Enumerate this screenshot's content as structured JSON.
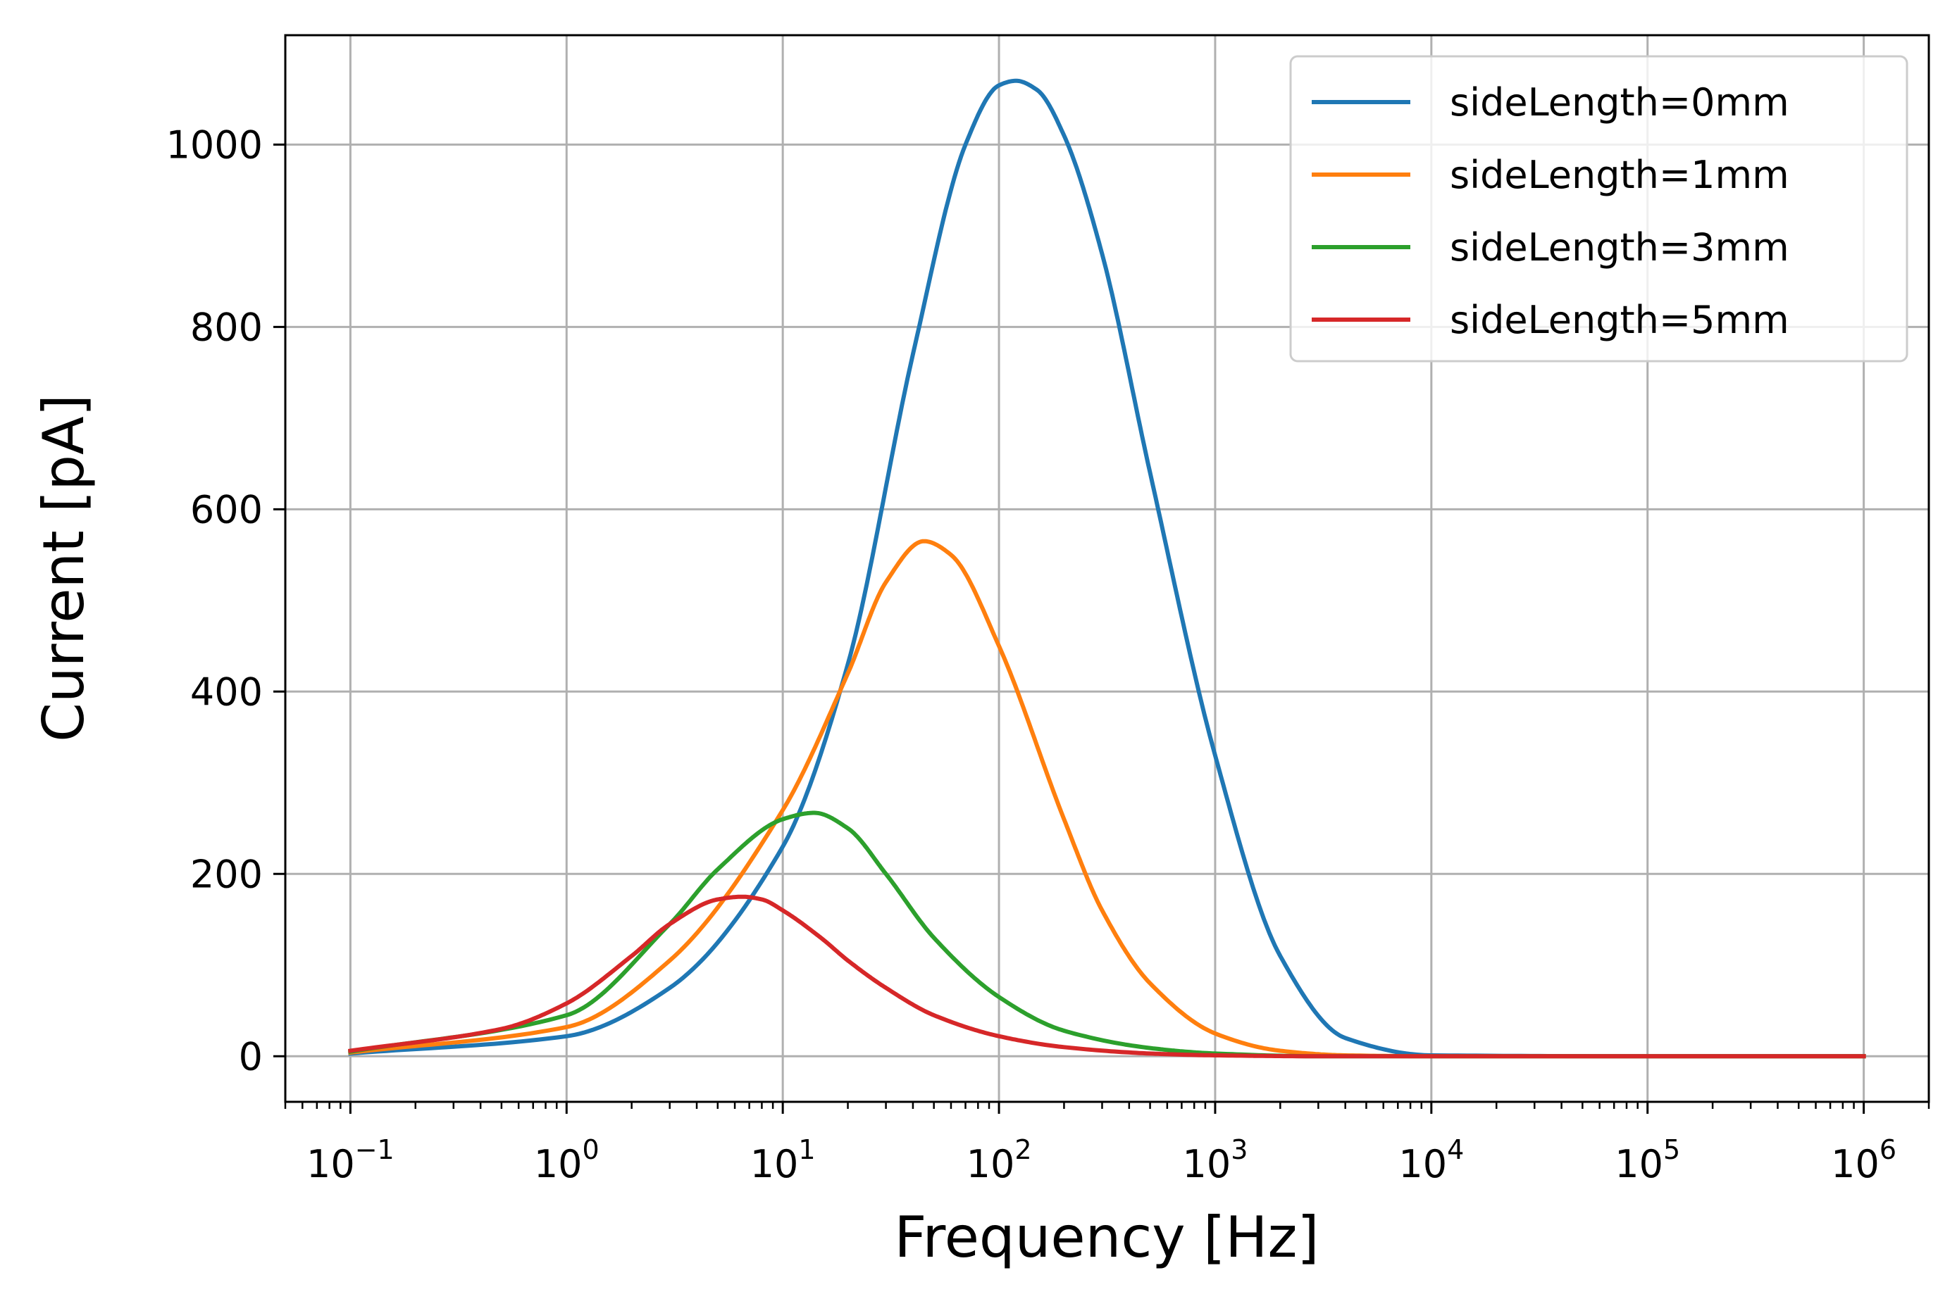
{
  "chart_data": {
    "type": "line",
    "xlabel": "Frequency [Hz]",
    "ylabel": "Current [pA]",
    "xscale": "log",
    "xlim": [
      0.05,
      2000000
    ],
    "ylim": [
      -50,
      1120
    ],
    "grid": true,
    "legend_position": "top-right",
    "x_ticks": [
      {
        "value": 0.1,
        "base": "10",
        "exp": "−1"
      },
      {
        "value": 1,
        "base": "10",
        "exp": "0"
      },
      {
        "value": 10,
        "base": "10",
        "exp": "1"
      },
      {
        "value": 100,
        "base": "10",
        "exp": "2"
      },
      {
        "value": 1000,
        "base": "10",
        "exp": "3"
      },
      {
        "value": 10000,
        "base": "10",
        "exp": "4"
      },
      {
        "value": 100000,
        "base": "10",
        "exp": "5"
      },
      {
        "value": 1000000,
        "base": "10",
        "exp": "6"
      }
    ],
    "y_ticks": [
      {
        "value": 0,
        "label": "0"
      },
      {
        "value": 200,
        "label": "200"
      },
      {
        "value": 400,
        "label": "400"
      },
      {
        "value": 600,
        "label": "600"
      },
      {
        "value": 800,
        "label": "800"
      },
      {
        "value": 1000,
        "label": "1000"
      }
    ],
    "series": [
      {
        "name": "sideLength=0mm",
        "color": "#1f77b4",
        "x": [
          0.1,
          1,
          3,
          10,
          20,
          40,
          70,
          100,
          120,
          150,
          200,
          300,
          500,
          1000,
          2000,
          4000,
          10000,
          100000,
          1000000
        ],
        "y": [
          3,
          22,
          75,
          230,
          430,
          770,
          1000,
          1065,
          1070,
          1060,
          1010,
          880,
          640,
          330,
          110,
          20,
          1,
          0,
          0
        ]
      },
      {
        "name": "sideLength=1mm",
        "color": "#ff7f0e",
        "x": [
          0.1,
          1,
          3,
          10,
          20,
          30,
          45,
          60,
          100,
          200,
          300,
          500,
          1000,
          2000,
          4000,
          10000,
          100000,
          1000000
        ],
        "y": [
          4,
          32,
          105,
          270,
          420,
          520,
          565,
          550,
          450,
          260,
          160,
          80,
          25,
          6,
          1,
          0,
          0,
          0
        ]
      },
      {
        "name": "sideLength=3mm",
        "color": "#2ca02c",
        "x": [
          0.1,
          1,
          3,
          5,
          10,
          14,
          20,
          30,
          50,
          100,
          200,
          500,
          1000,
          3000,
          10000,
          100000,
          1000000
        ],
        "y": [
          5,
          45,
          145,
          205,
          260,
          267,
          250,
          200,
          130,
          65,
          28,
          9,
          3,
          0,
          0,
          0,
          0
        ]
      },
      {
        "name": "sideLength=5mm",
        "color": "#d62728",
        "x": [
          0.1,
          0.5,
          1,
          2,
          3,
          5,
          6.5,
          8,
          10,
          15,
          20,
          30,
          50,
          100,
          200,
          500,
          1000,
          3000,
          10000,
          100000,
          1000000
        ],
        "y": [
          6,
          30,
          58,
          110,
          145,
          172,
          175,
          172,
          160,
          130,
          105,
          75,
          45,
          22,
          10,
          3,
          1,
          0,
          0,
          0,
          0
        ]
      }
    ]
  }
}
